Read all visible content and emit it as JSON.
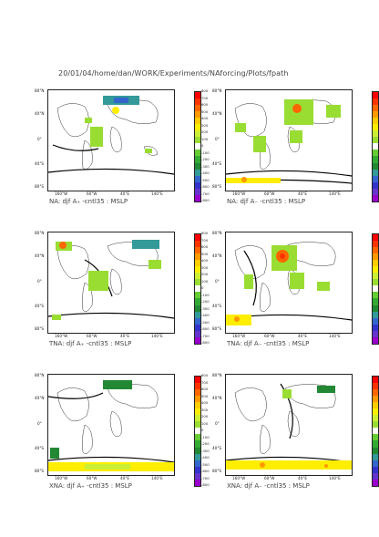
{
  "header": {
    "path": "20/01/04/home/dan/WORK/Experiments/NAforcing/Plots/fpath"
  },
  "axes": {
    "lat_labels": [
      "80°N",
      "40°N",
      "0°",
      "40°S",
      "80°S"
    ],
    "lon_labels": [
      "160°W",
      "60°W",
      "40°E",
      "140°E"
    ]
  },
  "colorbar": {
    "labels": [
      "800",
      "700",
      "600",
      "500",
      "400",
      "300",
      "200",
      "100",
      "0",
      "-100",
      "-200",
      "-300",
      "-400",
      "-500",
      "-600",
      "-700",
      "-800"
    ],
    "colors": [
      "#ff0000",
      "#ff3300",
      "#ff6600",
      "#ff9900",
      "#ffcc00",
      "#ffee00",
      "#ccee33",
      "#99dd33",
      "#ffffff",
      "#66cc33",
      "#33aa33",
      "#228833",
      "#339999",
      "#3366cc",
      "#3333cc",
      "#6633cc",
      "#9900cc"
    ]
  },
  "panels": [
    {
      "caption": "NA: djf A₊ -cntl35 : MSLP"
    },
    {
      "caption": "NA: djf A₋ -cntl35 : MSLP"
    },
    {
      "caption": "TNA: djf A₊ -cntl35 : MSLP"
    },
    {
      "caption": "TNA: djf A₋ -cntl35 : MSLP"
    },
    {
      "caption": "XNA: djf A₊ -cntl35 : MSLP"
    },
    {
      "caption": "XNA: djf A₋ -cntl35 : MSLP"
    }
  ]
}
